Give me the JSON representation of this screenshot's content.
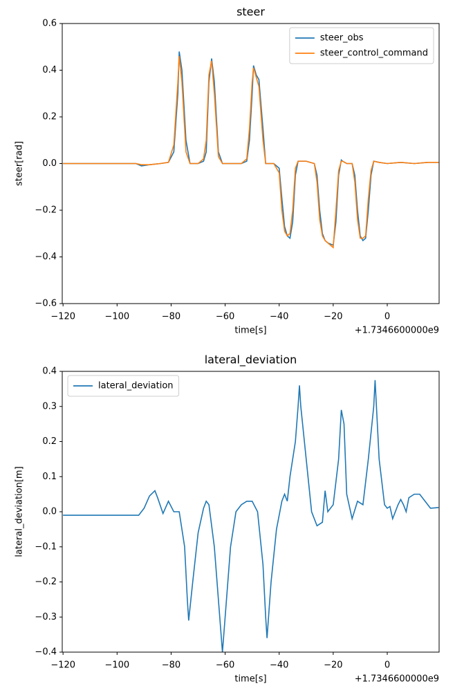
{
  "chart_data": [
    {
      "type": "line",
      "title": "steer",
      "xlabel": "time[s]",
      "ylabel": "steer[rad]",
      "x_offset_label": "+1.7346600000e9",
      "legend": "upper right",
      "xlim": [
        -120.3,
        19.2
      ],
      "ylim": [
        -0.6,
        0.6
      ],
      "xticks": [
        {
          "value": -120,
          "label": "−120"
        },
        {
          "value": -100,
          "label": "−100"
        },
        {
          "value": -80,
          "label": "−80"
        },
        {
          "value": -60,
          "label": "−60"
        },
        {
          "value": -40,
          "label": "−40"
        },
        {
          "value": -20,
          "label": "−20"
        },
        0
      ],
      "yticks": [
        {
          "value": -0.6,
          "label": "−0.6"
        },
        {
          "value": -0.4,
          "label": "−0.4"
        },
        {
          "value": -0.2,
          "label": "−0.2"
        },
        {
          "value": 0,
          "label": "0.0"
        },
        0.2,
        0.4,
        0.6
      ],
      "x": [
        -120,
        -93,
        -91,
        -88,
        -84,
        -81,
        -79,
        -77.5,
        -77,
        -76,
        -74.5,
        -73,
        -70,
        -68,
        -67,
        -66,
        -65,
        -64,
        -62.5,
        -61,
        -58,
        -54,
        -52,
        -51,
        -50,
        -49.5,
        -48.5,
        -47.5,
        -46,
        -45,
        -42,
        -40,
        -39,
        -38,
        -37,
        -36,
        -35,
        -34,
        -33,
        -30,
        -27,
        -26,
        -25,
        -24,
        -23,
        -22,
        -20,
        -19,
        -18,
        -17,
        -16.5,
        -15,
        -13,
        -12,
        -11,
        -10,
        -9,
        -8,
        -7,
        -6,
        -5,
        -3,
        0,
        5,
        10,
        15,
        19
      ],
      "series": [
        {
          "name": "steer_obs",
          "color": "#1f77b4",
          "values": [
            0,
            0,
            -0.01,
            -0.005,
            0,
            0.005,
            0.05,
            0.3,
            0.48,
            0.4,
            0.1,
            0,
            0,
            0.01,
            0.05,
            0.35,
            0.45,
            0.35,
            0.05,
            0,
            0,
            0,
            0.01,
            0.1,
            0.3,
            0.42,
            0.38,
            0.36,
            0.15,
            0,
            0,
            -0.02,
            -0.15,
            -0.27,
            -0.31,
            -0.32,
            -0.25,
            -0.05,
            0.01,
            0.01,
            0,
            -0.05,
            -0.2,
            -0.3,
            -0.33,
            -0.34,
            -0.35,
            -0.25,
            -0.05,
            0.015,
            0.01,
            0,
            0,
            -0.05,
            -0.2,
            -0.31,
            -0.33,
            -0.32,
            -0.2,
            -0.05,
            0.01,
            0.005,
            0,
            0.005,
            0,
            0.005,
            0.005
          ]
        },
        {
          "name": "steer_control_command",
          "color": "#ff7f0e",
          "values": [
            0,
            0,
            -0.005,
            -0.005,
            0,
            0.005,
            0.08,
            0.35,
            0.46,
            0.35,
            0.05,
            0,
            0,
            0.02,
            0.1,
            0.38,
            0.44,
            0.3,
            0.03,
            0,
            0,
            0,
            0.02,
            0.15,
            0.35,
            0.41,
            0.37,
            0.33,
            0.1,
            0,
            0,
            -0.04,
            -0.2,
            -0.29,
            -0.31,
            -0.3,
            -0.2,
            -0.02,
            0.01,
            0.01,
            0,
            -0.08,
            -0.24,
            -0.31,
            -0.33,
            -0.34,
            -0.36,
            -0.2,
            -0.03,
            0.01,
            0.01,
            0,
            0,
            -0.08,
            -0.24,
            -0.32,
            -0.32,
            -0.31,
            -0.15,
            -0.03,
            0.01,
            0.005,
            0,
            0.005,
            0,
            0.005,
            0.005
          ]
        }
      ]
    },
    {
      "type": "line",
      "title": "lateral_deviation",
      "xlabel": "time[s]",
      "ylabel": "lateral_deviation[m]",
      "x_offset_label": "+1.7346600000e9",
      "legend": "upper left",
      "xlim": [
        -120.3,
        19.2
      ],
      "ylim": [
        -0.4,
        0.4
      ],
      "xticks": [
        {
          "value": -120,
          "label": "−120"
        },
        {
          "value": -100,
          "label": "−100"
        },
        {
          "value": -80,
          "label": "−80"
        },
        {
          "value": -60,
          "label": "−60"
        },
        {
          "value": -40,
          "label": "−40"
        },
        {
          "value": -20,
          "label": "−20"
        },
        0
      ],
      "yticks": [
        {
          "value": -0.4,
          "label": "−0.4"
        },
        {
          "value": -0.3,
          "label": "−0.3"
        },
        {
          "value": -0.2,
          "label": "−0.2"
        },
        {
          "value": -0.1,
          "label": "−0.1"
        },
        {
          "value": 0,
          "label": "0.0"
        },
        0.1,
        0.2,
        0.3,
        0.4
      ],
      "x": [
        -120,
        -92,
        -90,
        -88,
        -86,
        -85,
        -83,
        -81,
        -79,
        -77,
        -75,
        -74,
        -73.5,
        -72,
        -70,
        -68,
        -67,
        -66,
        -64,
        -62,
        -61,
        -60,
        -58,
        -56,
        -54,
        -52,
        -50,
        -48,
        -46,
        -45,
        -44.5,
        -43,
        -41,
        -39,
        -38,
        -37,
        -36,
        -34,
        -33,
        -32.5,
        -32,
        -30,
        -28,
        -26,
        -24,
        -23,
        -22,
        -20,
        -18,
        -17,
        -16,
        -15,
        -13,
        -11,
        -9,
        -7,
        -5,
        -4.5,
        -4,
        -3,
        -1,
        0,
        1,
        2,
        4,
        5,
        6,
        7,
        8,
        10,
        12,
        14,
        16,
        19
      ],
      "series": [
        {
          "name": "lateral_deviation",
          "color": "#1f77b4",
          "values": [
            -0.01,
            -0.01,
            0.01,
            0.045,
            0.06,
            0.04,
            -0.005,
            0.03,
            0,
            0,
            -0.1,
            -0.25,
            -0.31,
            -0.2,
            -0.06,
            0.01,
            0.03,
            0.02,
            -0.1,
            -0.3,
            -0.4,
            -0.3,
            -0.1,
            0,
            0.02,
            0.03,
            0.03,
            0,
            -0.15,
            -0.3,
            -0.36,
            -0.2,
            -0.05,
            0.03,
            0.05,
            0.03,
            0.1,
            0.2,
            0.3,
            0.36,
            0.3,
            0.15,
            0,
            -0.04,
            -0.03,
            0.06,
            0,
            0.02,
            0.15,
            0.29,
            0.25,
            0.05,
            -0.02,
            0.03,
            0.02,
            0.15,
            0.3,
            0.375,
            0.3,
            0.15,
            0.02,
            0.01,
            0.015,
            -0.02,
            0.02,
            0.035,
            0.02,
            0,
            0.04,
            0.05,
            0.05,
            0.03,
            0.01,
            0.012
          ]
        }
      ]
    }
  ]
}
